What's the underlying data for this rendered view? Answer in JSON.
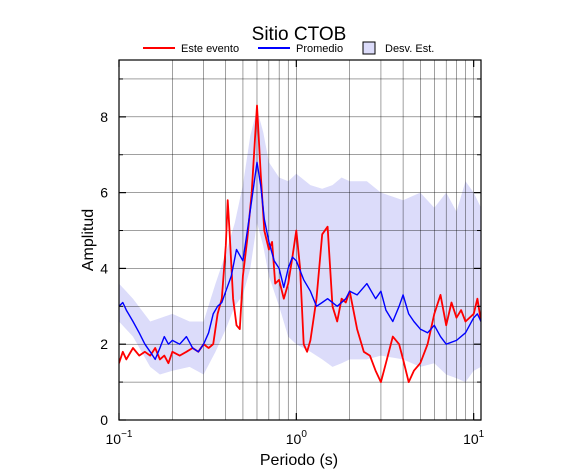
{
  "chart_data": {
    "type": "line",
    "title": "Sitio CTOB",
    "xlabel": "Periodo (s)",
    "ylabel": "Amplitud",
    "xscale": "log",
    "xlim": [
      0.1,
      11
    ],
    "ylim": [
      0,
      9.5
    ],
    "x_ticks": [
      0.1,
      1,
      10
    ],
    "x_tick_labels": [
      {
        "base": "10",
        "exp": "−1"
      },
      {
        "base": "10",
        "exp": "0"
      },
      {
        "base": "10",
        "exp": "1"
      }
    ],
    "y_ticks": [
      0,
      2,
      4,
      6,
      8
    ],
    "y_tick_labels": [
      "0",
      "2",
      "4",
      "6",
      "8"
    ],
    "grid": true,
    "legend_position": "top",
    "legend": [
      {
        "label": "Este evento",
        "kind": "line",
        "color": "#ff0000"
      },
      {
        "label": "Promedio",
        "kind": "line",
        "color": "#0000ff"
      },
      {
        "label": "Desv. Est.",
        "kind": "band",
        "color": "#dcdcfa"
      }
    ],
    "series": [
      {
        "name": "Este evento",
        "color": "#ff0000",
        "points": [
          [
            0.1,
            1.5
          ],
          [
            0.105,
            1.8
          ],
          [
            0.11,
            1.6
          ],
          [
            0.12,
            1.9
          ],
          [
            0.13,
            1.7
          ],
          [
            0.14,
            1.8
          ],
          [
            0.15,
            1.7
          ],
          [
            0.16,
            1.9
          ],
          [
            0.17,
            1.6
          ],
          [
            0.18,
            1.7
          ],
          [
            0.19,
            1.5
          ],
          [
            0.2,
            1.8
          ],
          [
            0.22,
            1.7
          ],
          [
            0.24,
            1.8
          ],
          [
            0.26,
            1.9
          ],
          [
            0.28,
            1.8
          ],
          [
            0.3,
            2.0
          ],
          [
            0.32,
            1.9
          ],
          [
            0.34,
            2.0
          ],
          [
            0.36,
            2.8
          ],
          [
            0.38,
            3.2
          ],
          [
            0.4,
            4.6
          ],
          [
            0.41,
            5.8
          ],
          [
            0.42,
            5.0
          ],
          [
            0.44,
            3.2
          ],
          [
            0.46,
            2.5
          ],
          [
            0.48,
            2.4
          ],
          [
            0.5,
            3.8
          ],
          [
            0.53,
            4.8
          ],
          [
            0.56,
            6.0
          ],
          [
            0.6,
            8.3
          ],
          [
            0.63,
            6.5
          ],
          [
            0.66,
            5.0
          ],
          [
            0.7,
            4.5
          ],
          [
            0.73,
            4.7
          ],
          [
            0.76,
            3.6
          ],
          [
            0.8,
            3.7
          ],
          [
            0.85,
            3.2
          ],
          [
            0.9,
            3.6
          ],
          [
            0.95,
            4.3
          ],
          [
            1.0,
            5.0
          ],
          [
            1.05,
            4.0
          ],
          [
            1.1,
            2.0
          ],
          [
            1.15,
            1.8
          ],
          [
            1.2,
            2.1
          ],
          [
            1.3,
            3.2
          ],
          [
            1.4,
            4.9
          ],
          [
            1.5,
            5.1
          ],
          [
            1.6,
            3.0
          ],
          [
            1.7,
            2.6
          ],
          [
            1.8,
            3.2
          ],
          [
            1.9,
            3.1
          ],
          [
            2.0,
            3.4
          ],
          [
            2.2,
            2.4
          ],
          [
            2.4,
            1.8
          ],
          [
            2.6,
            1.7
          ],
          [
            2.8,
            1.3
          ],
          [
            3.0,
            1.0
          ],
          [
            3.2,
            1.5
          ],
          [
            3.5,
            2.2
          ],
          [
            3.8,
            2.0
          ],
          [
            4.0,
            1.6
          ],
          [
            4.3,
            1.0
          ],
          [
            4.6,
            1.3
          ],
          [
            5.0,
            1.5
          ],
          [
            5.5,
            2.0
          ],
          [
            6.0,
            2.8
          ],
          [
            6.5,
            3.3
          ],
          [
            7.0,
            2.5
          ],
          [
            7.5,
            3.1
          ],
          [
            8.0,
            2.7
          ],
          [
            8.5,
            2.9
          ],
          [
            9.0,
            2.6
          ],
          [
            10.0,
            2.8
          ],
          [
            10.5,
            3.2
          ],
          [
            11.0,
            2.6
          ]
        ]
      },
      {
        "name": "Promedio",
        "color": "#0000ff",
        "points": [
          [
            0.1,
            3.0
          ],
          [
            0.105,
            3.1
          ],
          [
            0.11,
            2.9
          ],
          [
            0.12,
            2.6
          ],
          [
            0.13,
            2.3
          ],
          [
            0.14,
            2.0
          ],
          [
            0.15,
            1.8
          ],
          [
            0.16,
            1.6
          ],
          [
            0.17,
            1.9
          ],
          [
            0.18,
            2.2
          ],
          [
            0.19,
            2.0
          ],
          [
            0.2,
            2.1
          ],
          [
            0.22,
            2.0
          ],
          [
            0.24,
            2.2
          ],
          [
            0.26,
            1.9
          ],
          [
            0.28,
            1.8
          ],
          [
            0.3,
            2.0
          ],
          [
            0.32,
            2.3
          ],
          [
            0.34,
            2.8
          ],
          [
            0.36,
            3.0
          ],
          [
            0.38,
            3.1
          ],
          [
            0.4,
            3.4
          ],
          [
            0.43,
            3.8
          ],
          [
            0.46,
            4.5
          ],
          [
            0.5,
            4.2
          ],
          [
            0.53,
            5.0
          ],
          [
            0.56,
            5.8
          ],
          [
            0.6,
            6.8
          ],
          [
            0.63,
            6.2
          ],
          [
            0.66,
            5.3
          ],
          [
            0.7,
            4.7
          ],
          [
            0.75,
            4.2
          ],
          [
            0.8,
            4.0
          ],
          [
            0.85,
            3.5
          ],
          [
            0.9,
            4.0
          ],
          [
            0.95,
            4.3
          ],
          [
            1.0,
            4.2
          ],
          [
            1.1,
            3.7
          ],
          [
            1.2,
            3.4
          ],
          [
            1.3,
            3.0
          ],
          [
            1.4,
            3.1
          ],
          [
            1.5,
            3.2
          ],
          [
            1.7,
            3.0
          ],
          [
            1.9,
            3.2
          ],
          [
            2.0,
            3.4
          ],
          [
            2.2,
            3.3
          ],
          [
            2.5,
            3.6
          ],
          [
            2.8,
            3.2
          ],
          [
            3.0,
            3.4
          ],
          [
            3.2,
            2.9
          ],
          [
            3.5,
            2.6
          ],
          [
            3.8,
            3.0
          ],
          [
            4.0,
            3.3
          ],
          [
            4.3,
            2.8
          ],
          [
            4.6,
            2.6
          ],
          [
            5.0,
            2.4
          ],
          [
            5.5,
            2.3
          ],
          [
            6.0,
            2.5
          ],
          [
            6.5,
            2.2
          ],
          [
            7.0,
            2.0
          ],
          [
            8.0,
            2.1
          ],
          [
            9.0,
            2.3
          ],
          [
            10.0,
            2.7
          ],
          [
            10.5,
            2.8
          ],
          [
            11.0,
            2.6
          ]
        ]
      }
    ],
    "band": {
      "name": "Desv. Est.",
      "color": "#dcdcfa",
      "upper": [
        [
          0.1,
          3.6
        ],
        [
          0.12,
          3.2
        ],
        [
          0.15,
          2.6
        ],
        [
          0.2,
          2.8
        ],
        [
          0.25,
          2.6
        ],
        [
          0.3,
          2.6
        ],
        [
          0.35,
          3.6
        ],
        [
          0.4,
          4.4
        ],
        [
          0.45,
          5.2
        ],
        [
          0.5,
          6.2
        ],
        [
          0.55,
          7.5
        ],
        [
          0.6,
          8.2
        ],
        [
          0.65,
          7.6
        ],
        [
          0.7,
          6.8
        ],
        [
          0.8,
          6.4
        ],
        [
          0.9,
          6.3
        ],
        [
          1.0,
          6.5
        ],
        [
          1.2,
          6.2
        ],
        [
          1.4,
          6.1
        ],
        [
          1.6,
          6.2
        ],
        [
          1.8,
          6.4
        ],
        [
          2.0,
          6.3
        ],
        [
          2.5,
          6.3
        ],
        [
          3.0,
          6.0
        ],
        [
          4.0,
          5.8
        ],
        [
          5.0,
          6.0
        ],
        [
          6.0,
          5.6
        ],
        [
          7.0,
          6.0
        ],
        [
          8.0,
          5.5
        ],
        [
          9.0,
          6.3
        ],
        [
          10.0,
          6.0
        ],
        [
          11.0,
          5.6
        ]
      ],
      "lower": [
        [
          0.1,
          2.6
        ],
        [
          0.12,
          2.2
        ],
        [
          0.15,
          1.4
        ],
        [
          0.17,
          1.2
        ],
        [
          0.2,
          1.3
        ],
        [
          0.25,
          1.4
        ],
        [
          0.3,
          1.2
        ],
        [
          0.35,
          1.8
        ],
        [
          0.4,
          2.4
        ],
        [
          0.45,
          3.0
        ],
        [
          0.5,
          3.3
        ],
        [
          0.55,
          4.0
        ],
        [
          0.6,
          5.2
        ],
        [
          0.65,
          4.6
        ],
        [
          0.7,
          3.8
        ],
        [
          0.8,
          3.0
        ],
        [
          0.9,
          2.2
        ],
        [
          1.0,
          2.0
        ],
        [
          1.2,
          1.8
        ],
        [
          1.4,
          1.6
        ],
        [
          1.6,
          1.4
        ],
        [
          1.8,
          1.5
        ],
        [
          2.0,
          1.6
        ],
        [
          2.5,
          1.6
        ],
        [
          3.0,
          1.7
        ],
        [
          4.0,
          1.6
        ],
        [
          5.0,
          1.4
        ],
        [
          6.0,
          1.5
        ],
        [
          7.0,
          1.2
        ],
        [
          8.0,
          1.1
        ],
        [
          9.0,
          1.0
        ],
        [
          10.0,
          1.3
        ],
        [
          11.0,
          1.4
        ]
      ]
    }
  }
}
